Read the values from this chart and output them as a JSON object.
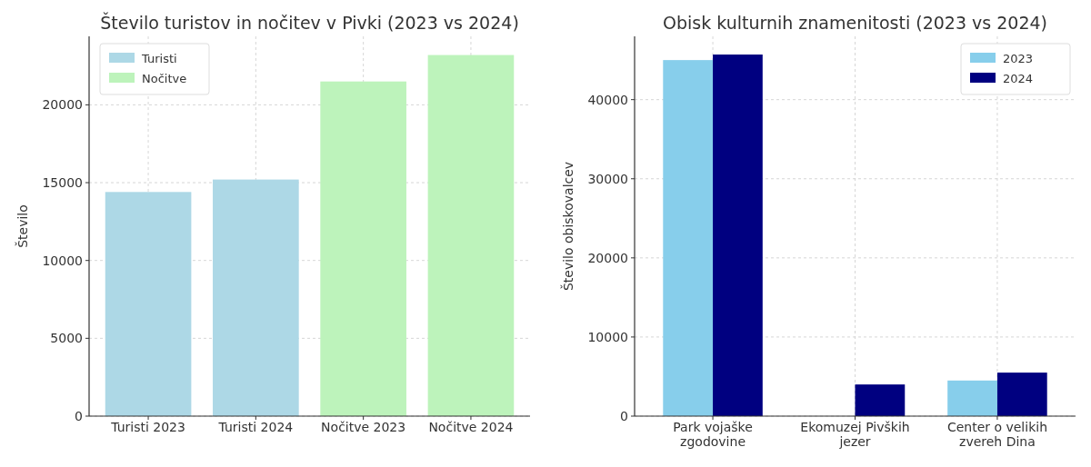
{
  "chart_data": [
    {
      "type": "bar",
      "title": "Število turistov in nočitev v Pivki (2023 vs 2024)",
      "ylabel": "Število",
      "categories": [
        "Turisti 2023",
        "Turisti 2024",
        "Nočitve 2023",
        "Nočitve 2024"
      ],
      "series": [
        {
          "name": "Turisti",
          "color": "#add8e6",
          "values": [
            14400,
            15200,
            null,
            null
          ]
        },
        {
          "name": "Nočitve",
          "color": "#bdf3bb",
          "values": [
            null,
            null,
            21500,
            23200
          ]
        }
      ],
      "ylim": [
        0,
        24400
      ],
      "yticks": [
        0,
        5000,
        10000,
        15000,
        20000
      ],
      "grid": true,
      "legend": "top left"
    },
    {
      "type": "bar",
      "title": "Obisk kulturnih znamenitosti (2023 vs 2024)",
      "ylabel": "Število obiskovalcev",
      "categories": [
        "Park vojaške zgodovine",
        "Ekomuzej Pivških jezer",
        "Center o velikih zvereh Dina"
      ],
      "series": [
        {
          "name": "2023",
          "color": "#87ceeb",
          "values": [
            45000,
            null,
            4500
          ]
        },
        {
          "name": "2024",
          "color": "#000080",
          "values": [
            45700,
            4000,
            5500
          ]
        }
      ],
      "ylim": [
        0,
        48000
      ],
      "yticks": [
        0,
        10000,
        20000,
        30000,
        40000
      ],
      "grid": true,
      "legend": "top right"
    }
  ]
}
